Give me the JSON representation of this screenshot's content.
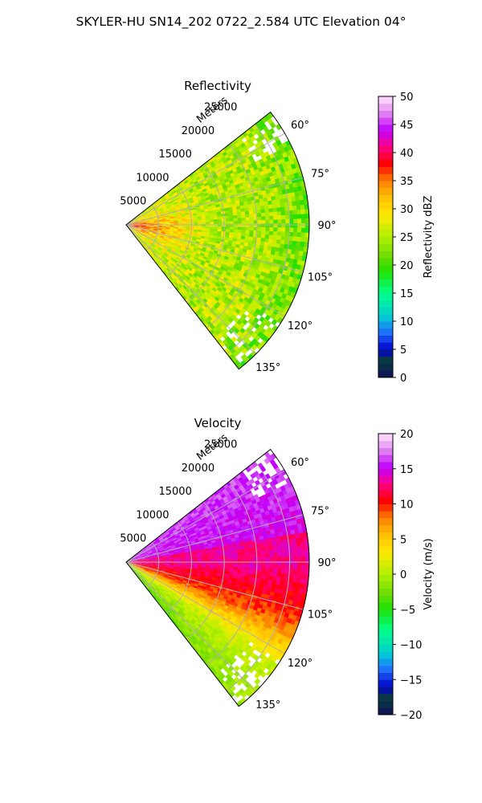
{
  "figure_title": "SKYLER-HU  SN14_202  0722_2.584 UTC Elevation 04°",
  "colors": {
    "grid": "#b0b0b0",
    "background": "#ffffff"
  },
  "chart_data": [
    {
      "type": "heatmap",
      "subtype": "polar-sector (radar PPI)",
      "title": "Reflectivity",
      "range_label": "Meters",
      "azimuth_range_deg": [
        52,
        142
      ],
      "range_max_m": 28000,
      "range_ticks": [
        "5000",
        "10000",
        "15000",
        "20000",
        "25000"
      ],
      "range_tick_values": [
        5000,
        10000,
        15000,
        20000,
        25000
      ],
      "azimuth_tick_values": [
        60,
        75,
        90,
        105,
        120,
        135
      ],
      "azimuth_ticks": [
        "60°",
        "75°",
        "90°",
        "105°",
        "120°",
        "135°"
      ],
      "grid": true,
      "colorbar": {
        "label": "Reflectivity dBZ",
        "min": 0,
        "max": 50,
        "tick_values": [
          0,
          5,
          10,
          15,
          20,
          25,
          30,
          35,
          40,
          45,
          50
        ],
        "ticks": [
          "0",
          "5",
          "10",
          "15",
          "20",
          "25",
          "30",
          "35",
          "40",
          "45",
          "50"
        ],
        "colormap": "radar reflectivity (navy-blue-cyan-green-yellow-orange-red-magenta-purple-pink)"
      },
      "field_summary": {
        "dominant_value_range": [
          20,
          30
        ],
        "near_radar_max": 38,
        "far_range_value": 22
      }
    },
    {
      "type": "heatmap",
      "subtype": "polar-sector (radar PPI)",
      "title": "Velocity",
      "range_label": "Meters",
      "azimuth_range_deg": [
        52,
        142
      ],
      "range_max_m": 28000,
      "range_ticks": [
        "5000",
        "10000",
        "15000",
        "20000",
        "25000"
      ],
      "range_tick_values": [
        5000,
        10000,
        15000,
        20000,
        25000
      ],
      "azimuth_tick_values": [
        60,
        75,
        90,
        105,
        120,
        135
      ],
      "azimuth_ticks": [
        "60°",
        "75°",
        "90°",
        "105°",
        "120°",
        "135°"
      ],
      "grid": true,
      "colorbar": {
        "label": "Velocity (m/s)",
        "min": -20,
        "max": 20,
        "tick_values": [
          -20,
          -15,
          -10,
          -5,
          0,
          5,
          10,
          15,
          20
        ],
        "ticks": [
          "−20",
          "−15",
          "−10",
          "−5",
          "0",
          "5",
          "10",
          "15",
          "20"
        ],
        "colormap": "radar velocity (navy-blue-cyan-green-yellow-orange-red-magenta-purple-pink)"
      },
      "field_summary": {
        "north_sector_value": 15,
        "east_sector_value": 13,
        "southeast_sector_value": 9,
        "south_sector_value": 1,
        "south_edge_value": -4
      }
    }
  ]
}
